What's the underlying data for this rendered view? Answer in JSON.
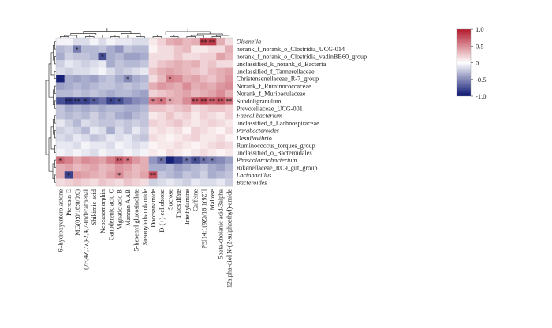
{
  "chart_data": {
    "type": "heatmap",
    "rows": [
      {
        "label": "Olsenella",
        "italic": true
      },
      {
        "label": "norank_f_norank_o_Clostridia_UCG-014",
        "italic": false
      },
      {
        "label": "norank_f_norank_o_Clostridia_vadinBB60_group",
        "italic": false
      },
      {
        "label": "unclassified_k_norank_d_Bacteria",
        "italic": false
      },
      {
        "label": "unclassified_f_Tannerellaceae",
        "italic": false
      },
      {
        "label": "Christensenellaceae_R-7_group",
        "italic": false
      },
      {
        "label": "Norank_f_Ruminococcaceae",
        "italic": false
      },
      {
        "label": "Norank_f_Muribaculaceae",
        "italic": false
      },
      {
        "label": "Subdoligranulum",
        "italic": false
      },
      {
        "label": "Prevotellaceae_UCG-001",
        "italic": false
      },
      {
        "label": "Faecalibacterium",
        "italic": true
      },
      {
        "label": "unclassified_f_Lachnospiraceae",
        "italic": false
      },
      {
        "label": "Parabacteroides",
        "italic": true
      },
      {
        "label": "Desulfovibrio",
        "italic": true
      },
      {
        "label": "Ruminococcus_torques_group",
        "italic": false
      },
      {
        "label": "unclassified_o_Bacteroidales",
        "italic": false
      },
      {
        "label": "Phascolarctobacterium",
        "italic": true
      },
      {
        "label": "Rikenellaceae_RC9_gut_group",
        "italic": false
      },
      {
        "label": "Lactobacillus",
        "italic": true
      },
      {
        "label": "Bacteroides",
        "italic": true
      }
    ],
    "columns": [
      "6'-hydroxyenterolactone",
      "Pterosin E",
      "MG(0:0/16:0/0:0)",
      "(2E,4Z,7Z)-2,4,7-tridecatrienal",
      "Shikimic acid",
      "Neocasomorphin",
      "Ganoderenic acid C",
      "Vignatic acid B",
      "Mannan A AB",
      "5-hexenyl glucosinolate",
      "Stearoylethanolamide",
      "Docosanamide",
      "D-(+)-cellobiose",
      "Sucrose",
      "Thiosulfate",
      "Triethylamine",
      "Caffeine",
      "PE[14:1(9Z)/16:1(9Z)]",
      "Maltose",
      "5beta-cholanic acid-3alpha",
      "12alpha-diol N-(2-sulphoethyl)-amide"
    ],
    "values": [
      [
        -0.05,
        -0.05,
        -0.15,
        -0.15,
        -0.05,
        -0.15,
        -0.05,
        -0.1,
        -0.1,
        -0.15,
        -0.15,
        0.1,
        0.2,
        0.35,
        0.4,
        0.3,
        0.35,
        0.85,
        0.85,
        0.35,
        0.15
      ],
      [
        -0.3,
        -0.25,
        -0.55,
        -0.3,
        -0.3,
        -0.25,
        -0.35,
        -0.45,
        -0.25,
        -0.3,
        -0.3,
        0.05,
        0.15,
        0.15,
        0.25,
        0.3,
        0.1,
        0.1,
        0.15,
        0.15,
        0.35
      ],
      [
        -0.35,
        -0.2,
        -0.25,
        -0.25,
        -0.3,
        -0.75,
        -0.35,
        -0.3,
        -0.4,
        -0.4,
        -0.35,
        0.15,
        0.15,
        0.15,
        0.25,
        0.15,
        0.15,
        0.2,
        0.2,
        0.4,
        0.3
      ],
      [
        -0.2,
        -0.1,
        -0.15,
        -0.2,
        -0.15,
        -0.1,
        -0.35,
        -0.25,
        -0.3,
        -0.3,
        -0.25,
        0.15,
        0.25,
        0.3,
        0.35,
        0.3,
        0.35,
        0.2,
        0.25,
        0.15,
        0.15
      ],
      [
        -0.15,
        -0.2,
        -0.15,
        -0.15,
        -0.1,
        -0.05,
        -0.15,
        -0.25,
        -0.2,
        -0.15,
        -0.1,
        0.25,
        0.35,
        0.4,
        0.35,
        0.3,
        0.25,
        0.2,
        0.3,
        0.35,
        0.4
      ],
      [
        -0.95,
        -0.35,
        -0.4,
        -0.35,
        -0.4,
        -0.3,
        -0.25,
        -0.35,
        -0.5,
        -0.35,
        -0.3,
        0.15,
        0.3,
        0.55,
        0.5,
        0.35,
        0.4,
        0.3,
        0.25,
        0.35,
        0.45
      ],
      [
        -0.4,
        -0.35,
        -0.3,
        -0.35,
        -0.3,
        -0.25,
        -0.25,
        -0.3,
        -0.25,
        -0.3,
        -0.25,
        0.35,
        0.45,
        0.4,
        0.35,
        0.5,
        0.35,
        0.4,
        0.35,
        0.45,
        0.5
      ],
      [
        -0.3,
        -0.3,
        -0.25,
        -0.3,
        -0.25,
        -0.3,
        -0.35,
        -0.3,
        -0.3,
        -0.35,
        -0.4,
        0.2,
        0.25,
        0.3,
        0.35,
        0.4,
        0.3,
        0.35,
        0.4,
        0.5,
        0.35
      ],
      [
        -0.75,
        -0.85,
        -0.8,
        -0.8,
        -0.7,
        -0.6,
        -0.8,
        -0.75,
        -0.6,
        -0.5,
        -0.45,
        0.55,
        0.6,
        0.4,
        0.35,
        0.5,
        0.75,
        0.8,
        0.7,
        0.75,
        0.6
      ],
      [
        -0.25,
        -0.35,
        -0.3,
        -0.35,
        -0.3,
        -0.35,
        -0.3,
        -0.3,
        -0.35,
        -0.35,
        -0.3,
        0.25,
        0.25,
        0.2,
        0.25,
        0.3,
        0.15,
        0.2,
        0.25,
        0.25,
        0.2
      ],
      [
        -0.25,
        -0.3,
        -0.25,
        -0.3,
        -0.2,
        -0.3,
        -0.25,
        -0.35,
        -0.4,
        -0.3,
        -0.25,
        0.1,
        0.15,
        0.25,
        0.15,
        0.2,
        0.1,
        0.2,
        0.15,
        0.1,
        0.2
      ],
      [
        -0.1,
        -0.2,
        -0.3,
        -0.15,
        -0.2,
        -0.25,
        -0.25,
        -0.2,
        -0.25,
        -0.2,
        -0.25,
        0.2,
        0.15,
        0.2,
        0.25,
        0.15,
        0.1,
        0.15,
        0.2,
        0.15,
        0.1
      ],
      [
        -0.2,
        -0.15,
        -0.2,
        -0.3,
        -0.1,
        -0.15,
        -0.35,
        -0.15,
        -0.25,
        -0.1,
        -0.2,
        0.1,
        0.15,
        0.1,
        0.15,
        0.05,
        0.2,
        0.15,
        0.1,
        0.05,
        0.15
      ],
      [
        -0.15,
        -0.2,
        -0.1,
        -0.15,
        -0.25,
        -0.2,
        -0.1,
        -0.15,
        -0.1,
        -0.2,
        -0.25,
        0.15,
        0.1,
        0.05,
        0.1,
        0.15,
        0.2,
        0.1,
        0.1,
        0.15,
        0.05
      ],
      [
        -0.1,
        -0.1,
        -0.15,
        -0.05,
        -0.1,
        -0.1,
        -0.15,
        -0.05,
        -0.1,
        -0.15,
        -0.1,
        0.05,
        0.1,
        0.1,
        0.15,
        0.1,
        0.05,
        0.1,
        0.15,
        0.2,
        0.15
      ],
      [
        -0.05,
        -0.1,
        -0.05,
        -0.1,
        -0.15,
        -0.05,
        -0.1,
        -0.1,
        -0.05,
        -0.1,
        -0.05,
        0.1,
        0.05,
        0.15,
        0.1,
        0.05,
        0.1,
        0.15,
        0.1,
        0.05,
        0.1
      ],
      [
        0.65,
        0.55,
        0.4,
        0.5,
        0.45,
        0.4,
        0.55,
        0.7,
        0.6,
        0.45,
        0.35,
        -0.45,
        -0.6,
        -0.95,
        -0.8,
        -0.6,
        -0.75,
        -0.6,
        -0.55,
        -0.5,
        -0.4
      ],
      [
        0.35,
        0.4,
        0.3,
        0.35,
        0.4,
        0.3,
        0.35,
        0.45,
        0.4,
        0.3,
        0.35,
        -0.35,
        -0.35,
        -0.3,
        -0.4,
        -0.35,
        -0.3,
        -0.25,
        -0.35,
        -0.4,
        -0.3
      ],
      [
        0.35,
        -0.8,
        0.45,
        0.4,
        0.35,
        0.3,
        0.4,
        0.5,
        0.35,
        0.3,
        0.4,
        0.75,
        -0.25,
        -0.3,
        -0.35,
        -0.25,
        -0.3,
        -0.2,
        -0.35,
        -0.3,
        -0.25
      ],
      [
        0.15,
        0.2,
        0.25,
        0.2,
        0.15,
        0.25,
        0.2,
        0.15,
        0.25,
        0.2,
        0.15,
        -0.2,
        -0.15,
        -0.1,
        -0.15,
        -0.2,
        -0.1,
        -0.15,
        -0.15,
        -0.1,
        -0.2
      ]
    ],
    "significance": [
      [
        "",
        "",
        "",
        "",
        "",
        "",
        "",
        "",
        "",
        "",
        "",
        "",
        "",
        "",
        "",
        "",
        "",
        "**",
        "**",
        "",
        ""
      ],
      [
        "",
        "",
        "*",
        "",
        "",
        "",
        "",
        "",
        "",
        "",
        "",
        "",
        "",
        "",
        "",
        "",
        "",
        "",
        "",
        "",
        ""
      ],
      [
        "",
        "",
        "",
        "",
        "",
        "*",
        "",
        "",
        "",
        "",
        "",
        "",
        "",
        "",
        "",
        "",
        "",
        "",
        "",
        "",
        ""
      ],
      [
        "",
        "",
        "",
        "",
        "",
        "",
        "",
        "",
        "",
        "",
        "",
        "",
        "",
        "",
        "",
        "",
        "",
        "",
        "",
        "",
        ""
      ],
      [
        "",
        "",
        "",
        "",
        "",
        "",
        "",
        "",
        "",
        "",
        "",
        "",
        "",
        "",
        "",
        "",
        "",
        "",
        "",
        "",
        ""
      ],
      [
        "",
        "",
        "",
        "",
        "",
        "",
        "",
        "",
        "*",
        "",
        "",
        "",
        "",
        "*",
        "",
        "",
        "",
        "",
        "",
        "",
        ""
      ],
      [
        "",
        "",
        "",
        "",
        "",
        "",
        "",
        "",
        "",
        "",
        "",
        "",
        "",
        "",
        "",
        "",
        "",
        "",
        "",
        "",
        ""
      ],
      [
        "",
        "",
        "",
        "",
        "",
        "",
        "",
        "",
        "",
        "",
        "",
        "",
        "",
        "",
        "",
        "",
        "",
        "",
        "",
        "",
        ""
      ],
      [
        "",
        "**",
        "**",
        "*",
        "*",
        "",
        "*",
        "*",
        "",
        "",
        "",
        "*",
        "*",
        "*",
        "",
        "",
        "**",
        "**",
        "**",
        "**",
        "**"
      ],
      [
        "",
        "",
        "",
        "",
        "",
        "",
        "",
        "",
        "",
        "",
        "",
        "",
        "",
        "",
        "",
        "",
        "",
        "",
        "",
        "",
        ""
      ],
      [
        "",
        "",
        "",
        "",
        "",
        "",
        "",
        "",
        "",
        "",
        "",
        "",
        "",
        "",
        "",
        "",
        "",
        "",
        "",
        "",
        ""
      ],
      [
        "",
        "",
        "",
        "",
        "",
        "",
        "",
        "",
        "",
        "",
        "",
        "",
        "",
        "",
        "",
        "",
        "",
        "",
        "",
        "",
        ""
      ],
      [
        "",
        "",
        "",
        "",
        "",
        "",
        "",
        "",
        "",
        "",
        "",
        "",
        "",
        "",
        "",
        "",
        "",
        "",
        "",
        "",
        ""
      ],
      [
        "",
        "",
        "",
        "",
        "",
        "",
        "",
        "",
        "",
        "",
        "",
        "",
        "",
        "",
        "",
        "",
        "",
        "",
        "",
        "",
        ""
      ],
      [
        "",
        "",
        "",
        "",
        "",
        "",
        "",
        "",
        "",
        "",
        "",
        "",
        "",
        "",
        "",
        "",
        "",
        "",
        "",
        "",
        ""
      ],
      [
        "",
        "",
        "",
        "",
        "",
        "",
        "",
        "",
        "",
        "",
        "",
        "",
        "",
        "",
        "",
        "",
        "",
        "",
        "",
        "",
        ""
      ],
      [
        "*",
        "",
        "",
        "",
        "",
        "",
        "",
        "**",
        "*",
        "",
        "",
        "",
        "*",
        "",
        "",
        "*",
        "*",
        "*",
        "*",
        "",
        ""
      ],
      [
        "",
        "",
        "",
        "",
        "",
        "",
        "",
        "",
        "",
        "",
        "",
        "",
        "",
        "",
        "",
        "",
        "",
        "",
        "",
        "",
        ""
      ],
      [
        "",
        "*",
        "",
        "",
        "",
        "",
        "",
        "*",
        "",
        "",
        "",
        "**",
        "",
        "",
        "",
        "",
        "",
        "",
        "",
        "",
        ""
      ],
      [
        "",
        "",
        "",
        "",
        "",
        "",
        "",
        "",
        "",
        "",
        "",
        "",
        "",
        "",
        "",
        "",
        "",
        "",
        "",
        "",
        ""
      ]
    ],
    "colorbar": {
      "min": -1.0,
      "max": 1.0,
      "ticks": [
        "1.0",
        "0.5",
        "0",
        "-0.5",
        "-1.0"
      ],
      "tick_values": [
        1.0,
        0.5,
        0,
        -0.5,
        -1.0
      ],
      "colors": {
        "low": "#0a1470",
        "mid": "#ffffff",
        "high": "#b2182b"
      }
    },
    "dendrograms": {
      "rows": true,
      "columns": true
    }
  }
}
